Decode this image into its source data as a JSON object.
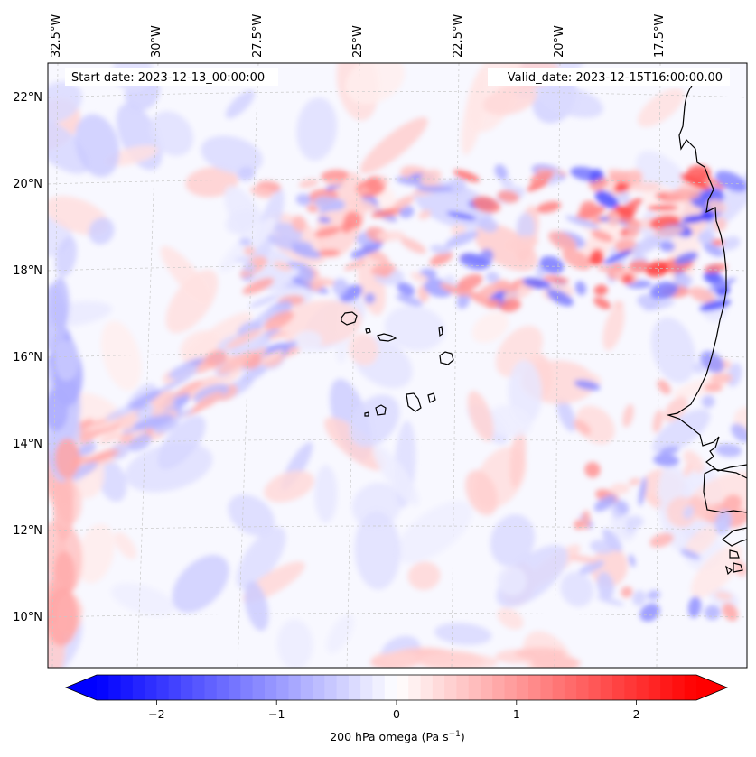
{
  "map": {
    "start_date": "Start date: 2023-12-13_00:00:00",
    "valid_date": "Valid_date: 2023-12-15T16:00:00.00",
    "lon_labels": [
      "32.5°W",
      "30°W",
      "27.5°W",
      "25°W",
      "22.5°W",
      "20°W",
      "17.5°W"
    ],
    "lat_labels": [
      "22°N",
      "20°N",
      "18°N",
      "16°N",
      "14°N",
      "12°N",
      "10°N"
    ],
    "extent": {
      "lon_min": -33.0,
      "lon_max": -15.5,
      "lat_min": 8.8,
      "lat_max": 22.8
    }
  },
  "colorbar": {
    "label_main": "200 hPa omega (Pa s",
    "label_sup": "−1",
    "label_end": ")",
    "ticks": [
      "−2",
      "−1",
      "0",
      "1",
      "2"
    ],
    "tick_values": [
      -2,
      -1,
      0,
      1,
      2
    ],
    "vmin": -2.5,
    "vmax": 2.5,
    "colors": {
      "low": "#0000ff",
      "mid": "#ffffff",
      "high": "#ff0000"
    }
  },
  "chart_data": {
    "type": "heatmap",
    "variable": "200 hPa omega",
    "units": "Pa s-1",
    "colorbar_range": [
      -2.5,
      2.5
    ],
    "colorbar_ticks": [
      -2,
      -1,
      0,
      1,
      2
    ],
    "lon_ticks": [
      -32.5,
      -30,
      -27.5,
      -25,
      -22.5,
      -20,
      -17.5
    ],
    "lat_ticks": [
      22,
      20,
      18,
      16,
      14,
      12,
      10
    ]
  }
}
